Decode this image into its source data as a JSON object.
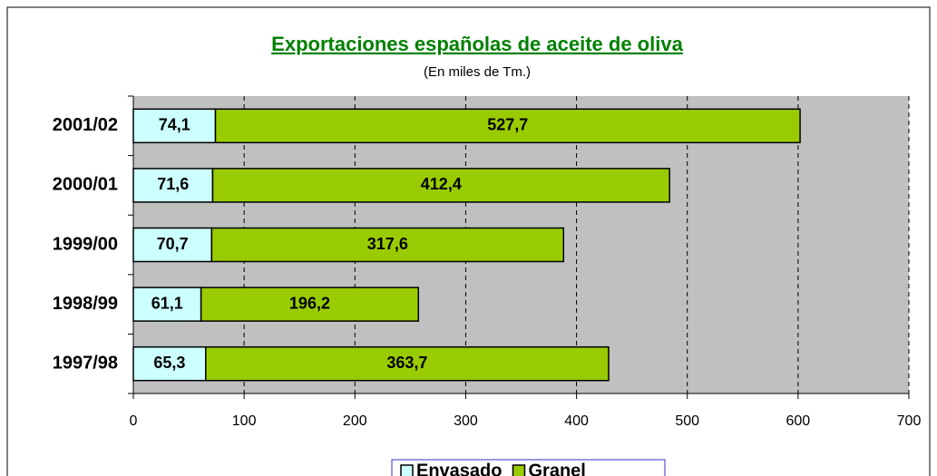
{
  "chart_data": {
    "type": "bar",
    "orientation": "horizontal",
    "stacked": true,
    "title": "Exportaciones españolas de aceite de oliva",
    "subtitle": "(En miles de Tm.)",
    "categories": [
      "2001/02",
      "2000/01",
      "1999/00",
      "1998/99",
      "1997/98"
    ],
    "series": [
      {
        "name": "Envasado",
        "color": "#ccffff",
        "values": [
          74.1,
          71.6,
          70.7,
          61.1,
          65.3
        ],
        "value_labels": [
          "74,1",
          "71,6",
          "70,7",
          "61,1",
          "65,3"
        ]
      },
      {
        "name": "Granel",
        "color": "#99cc00",
        "values": [
          527.7,
          412.4,
          317.6,
          196.2,
          363.7
        ],
        "value_labels": [
          "527,7",
          "412,4",
          "317,6",
          "196,2",
          "363,7"
        ]
      }
    ],
    "xlim": [
      0,
      700
    ],
    "xticks": [
      0,
      100,
      200,
      300,
      400,
      500,
      600,
      700
    ],
    "grid": true,
    "legend": "bottom"
  }
}
